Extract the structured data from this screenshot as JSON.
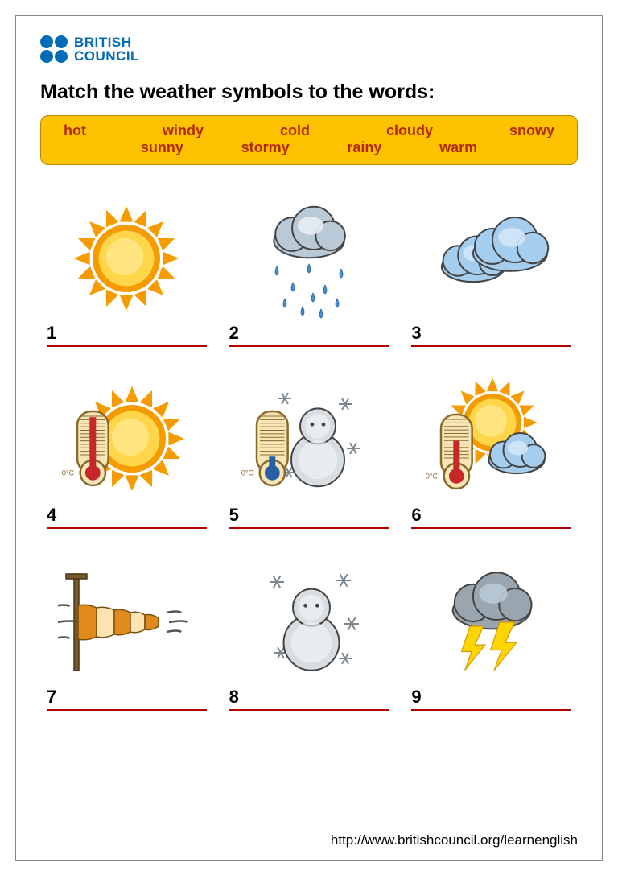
{
  "brand": {
    "line1": "BRITISH",
    "line2": "COUNCIL",
    "color": "#006bb6"
  },
  "instruction": "Match the weather symbols to the words:",
  "wordbank": {
    "bg": "#fec200",
    "text_color": "#b22a00",
    "row1": [
      "hot",
      "windy",
      "cold",
      "cloudy",
      "snowy"
    ],
    "row2": [
      "sunny",
      "stormy",
      "rainy",
      "warm"
    ]
  },
  "answer_line_color": "#b00000",
  "cells": [
    {
      "num": "1",
      "icon": "sunny"
    },
    {
      "num": "2",
      "icon": "rainy"
    },
    {
      "num": "3",
      "icon": "cloudy"
    },
    {
      "num": "4",
      "icon": "hot"
    },
    {
      "num": "5",
      "icon": "cold"
    },
    {
      "num": "6",
      "icon": "warm"
    },
    {
      "num": "7",
      "icon": "windy"
    },
    {
      "num": "8",
      "icon": "snowy"
    },
    {
      "num": "9",
      "icon": "stormy"
    }
  ],
  "footer_url": "http://www.britishcouncil.org/learnenglish",
  "palette": {
    "sun_outer": "#f59b00",
    "sun_inner": "#ffd54a",
    "sun_core": "#ffe480",
    "cloud_light": "#e9eef3",
    "cloud_mid": "#b9c9d6",
    "cloud_dark": "#9aa6af",
    "cloud_blue": "#a4cdee",
    "cloud_blue_hl": "#d3e8fa",
    "cloud_outline": "#444",
    "rain": "#4a90d0",
    "snowman": "#d7dde0",
    "snowman_hl": "#f2f6f8",
    "snowflake": "#7a8790",
    "thermo_body": "#f6e5b7",
    "thermo_border": "#8a6a28",
    "thermo_fluid_red": "#c62828",
    "thermo_fluid_blue": "#2a5fa3",
    "thermo_tick": "#8a6a28",
    "lightning": "#ffd400",
    "lightning_edge": "#d19c00",
    "windsock_a": "#e08a1c",
    "windsock_b": "#ffe3b0",
    "pole": "#7a5a28",
    "wind_line": "#5e5248"
  }
}
